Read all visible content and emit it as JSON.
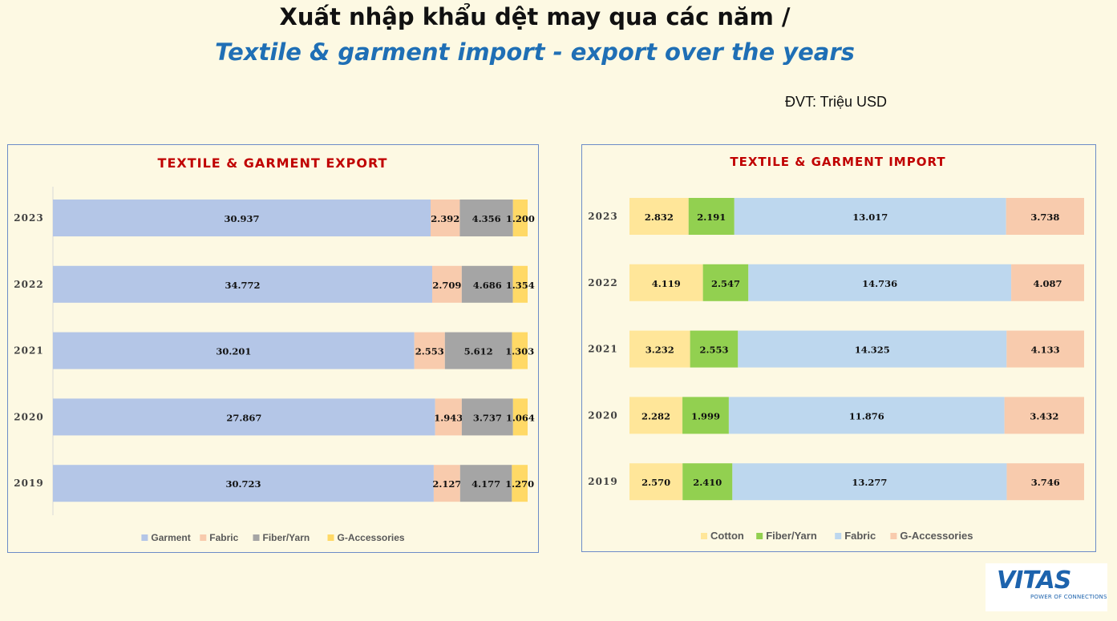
{
  "page": {
    "title_vi": "Xuất nhập khẩu dệt may qua các năm /",
    "title_en": "Textile & garment import - export over the years",
    "unit": "ĐVT: Triệu USD"
  },
  "logo": {
    "text": "VITAS",
    "tagline": "POWER OF CONNECTIONS"
  },
  "chart_data": [
    {
      "type": "bar",
      "orientation": "horizontal",
      "stacked": true,
      "percent_stacked": true,
      "title": "TEXTILE & GARMENT EXPORT",
      "categories": [
        "2023",
        "2022",
        "2021",
        "2020",
        "2019"
      ],
      "series": [
        {
          "name": "Garment",
          "color": "#b4c6e7",
          "values": [
            "30.937",
            "34.772",
            "30.201",
            "27.867",
            "30.723"
          ]
        },
        {
          "name": "Fabric",
          "color": "#f8cbad",
          "values": [
            "2.392",
            "2.709",
            "2.553",
            "1.943",
            "2.127"
          ]
        },
        {
          "name": "Fiber/Yarn",
          "color": "#a5a5a5",
          "values": [
            "4.356",
            "4.686",
            "5.612",
            "3.737",
            "4.177"
          ]
        },
        {
          "name": "G-Accessories",
          "color": "#ffd966",
          "values": [
            "1.200",
            "1.354",
            "1.303",
            "1.064",
            "1.270"
          ]
        }
      ],
      "legend": "bottom",
      "grid": false
    },
    {
      "type": "bar",
      "orientation": "horizontal",
      "stacked": true,
      "percent_stacked": true,
      "title": "TEXTILE & GARMENT IMPORT",
      "categories": [
        "2023",
        "2022",
        "2021",
        "2020",
        "2019"
      ],
      "series": [
        {
          "name": "Cotton",
          "color": "#ffe699",
          "values": [
            "2.832",
            "4.119",
            "3.232",
            "2.282",
            "2.570"
          ]
        },
        {
          "name": "Fiber/Yarn",
          "color": "#92d050",
          "values": [
            "2.191",
            "2.547",
            "2.553",
            "1.999",
            "2.410"
          ]
        },
        {
          "name": "Fabric",
          "color": "#bdd7ee",
          "values": [
            "13.017",
            "14.736",
            "14.325",
            "11.876",
            "13.277"
          ]
        },
        {
          "name": "G-Accessories",
          "color": "#f8cbad",
          "values": [
            "3.738",
            "4.087",
            "4.133",
            "3.432",
            "3.746"
          ]
        }
      ],
      "legend": "bottom",
      "grid": false
    }
  ]
}
